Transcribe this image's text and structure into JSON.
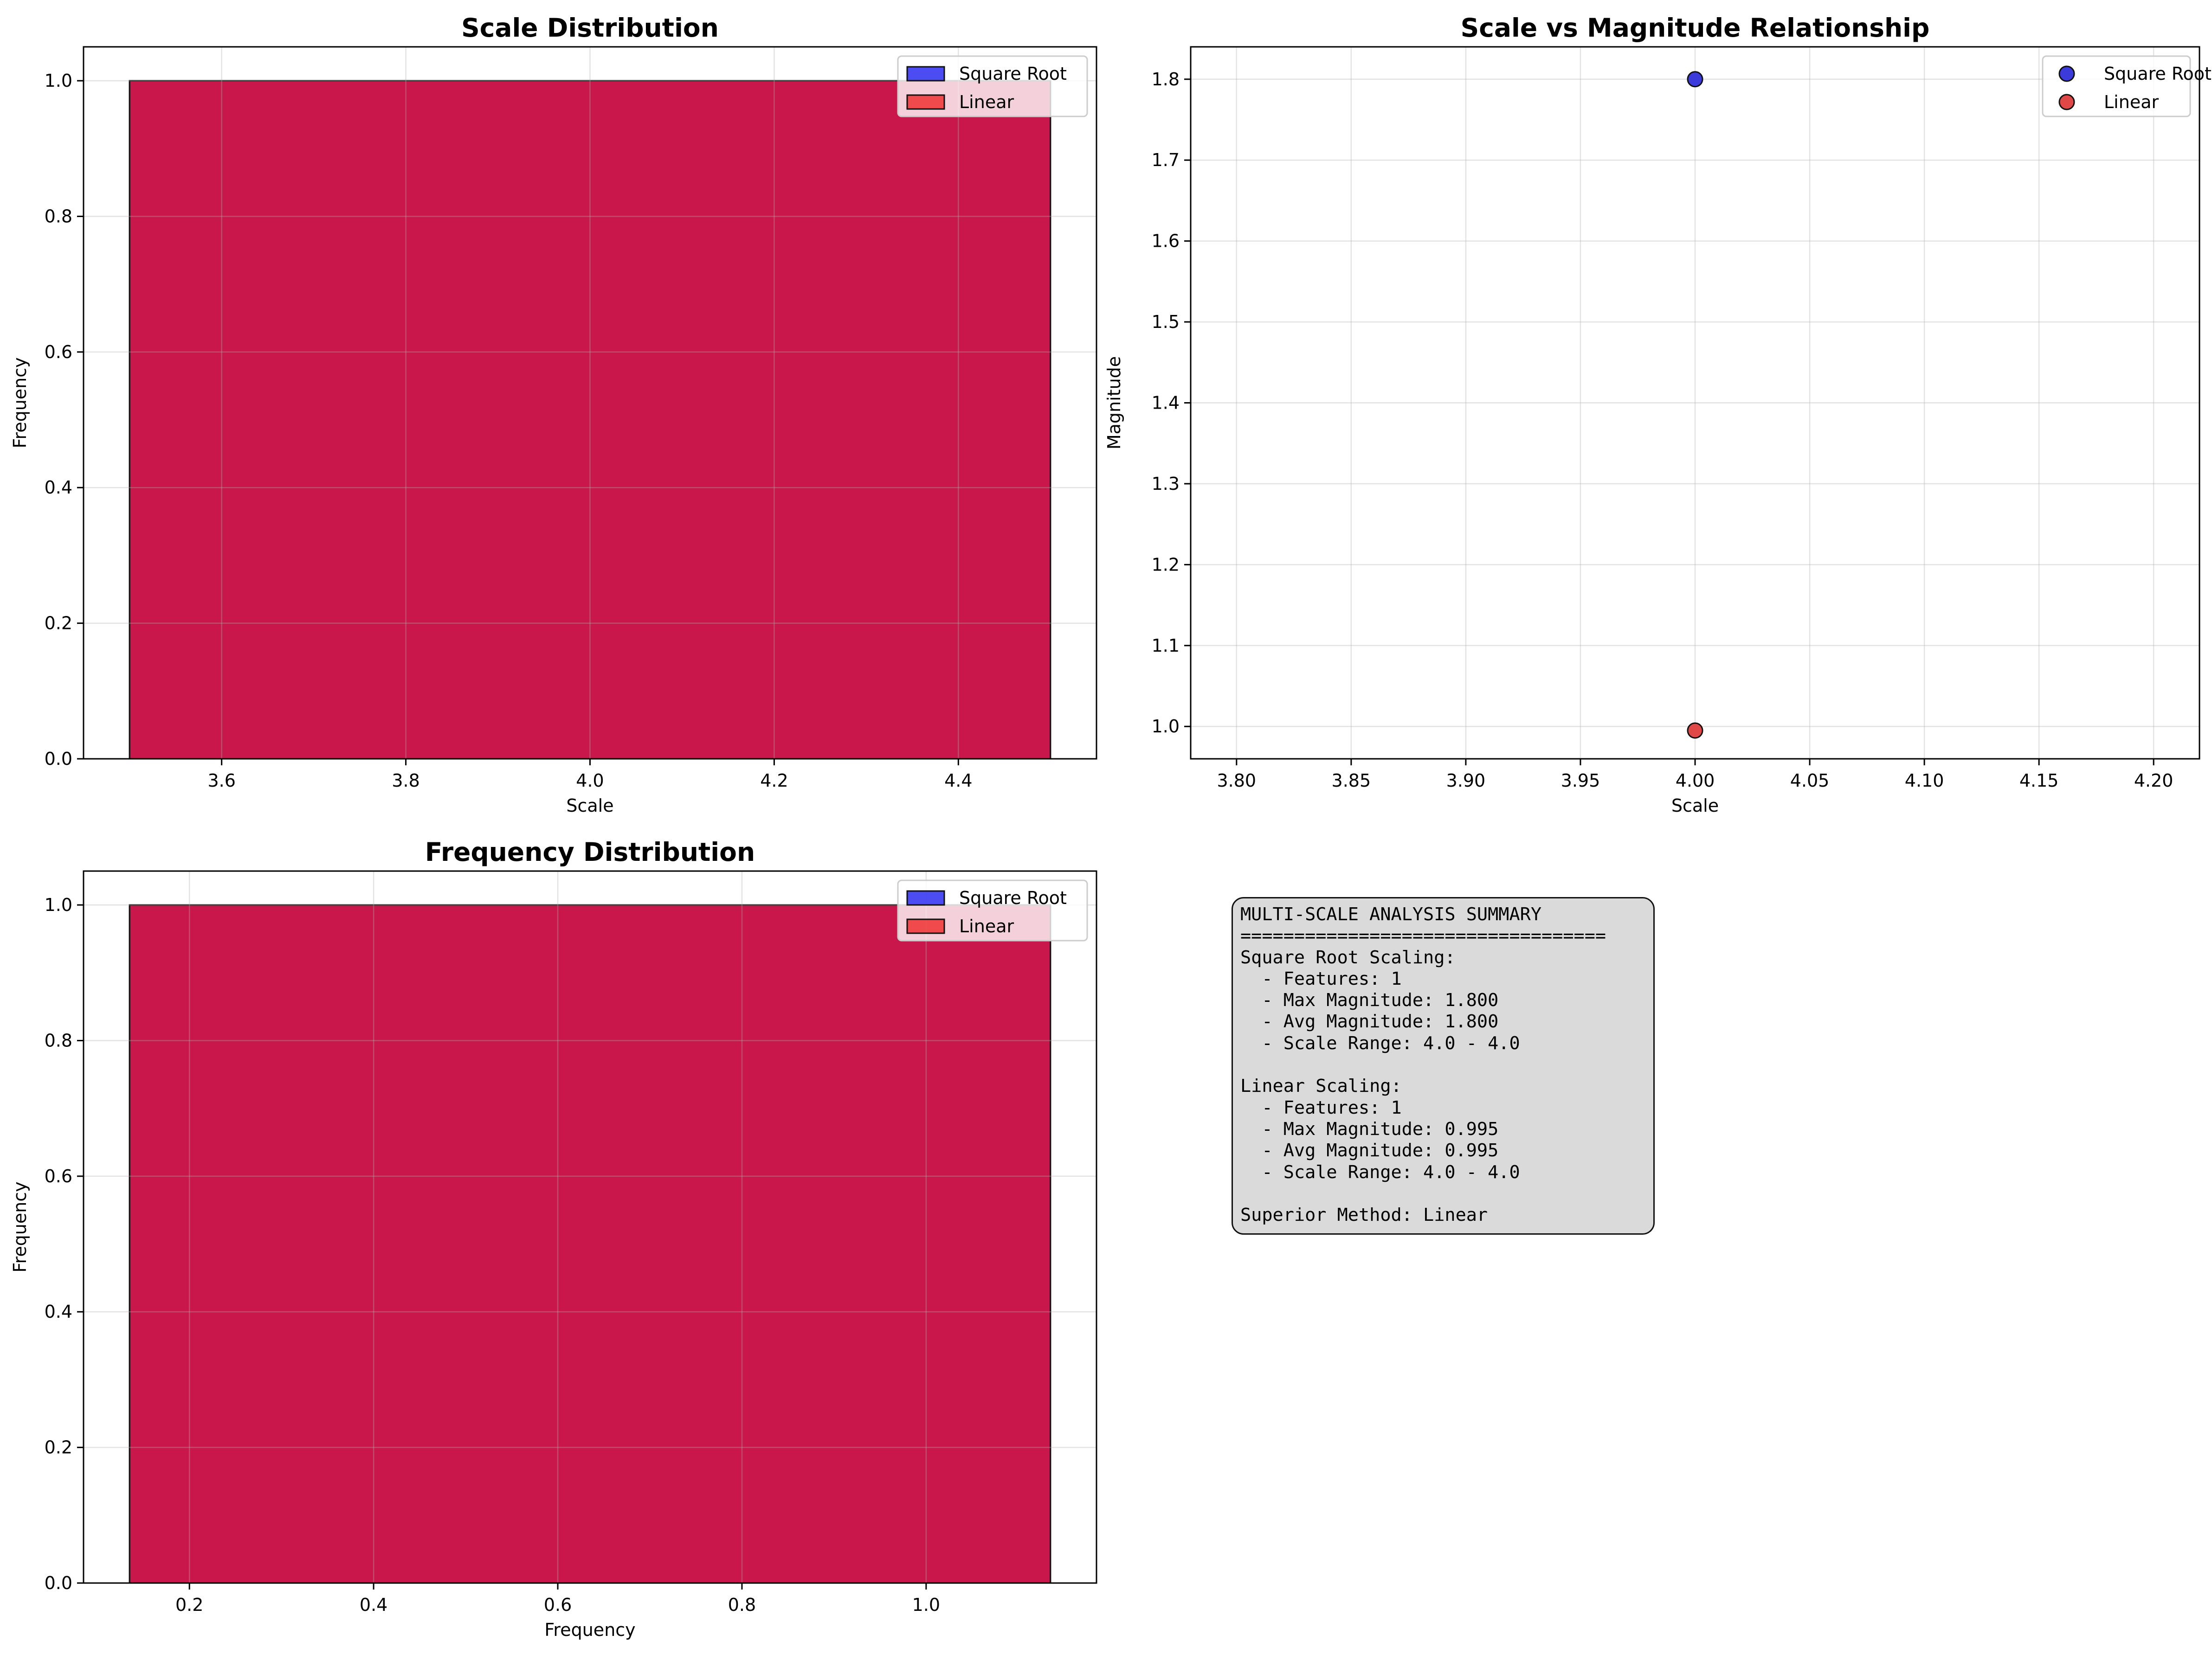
{
  "chart_data": [
    {
      "type": "bar",
      "title": "Scale Distribution",
      "xlabel": "Scale",
      "ylabel": "Frequency",
      "xlim": [
        3.45,
        4.55
      ],
      "ylim": [
        0,
        1.05
      ],
      "xticks": [
        "3.6",
        "3.8",
        "4.0",
        "4.2",
        "4.4"
      ],
      "yticks": [
        "0.0",
        "0.2",
        "0.4",
        "0.6",
        "0.8",
        "1.0"
      ],
      "grid": true,
      "legend_position": "top-right",
      "series": [
        {
          "name": "Square Root",
          "color": "#0000ee",
          "bins": [
            [
              3.5,
              4.5
            ]
          ],
          "values": [
            1
          ]
        },
        {
          "name": "Linear",
          "color": "#ee1111",
          "bins": [
            [
              3.5,
              4.5
            ]
          ],
          "values": [
            1
          ]
        }
      ],
      "overlap_color": "#c9174b"
    },
    {
      "type": "scatter",
      "title": "Scale vs Magnitude Relationship",
      "xlabel": "Scale",
      "ylabel": "Magnitude",
      "xlim": [
        3.78,
        4.22
      ],
      "ylim": [
        0.96,
        1.84
      ],
      "xticks": [
        "3.80",
        "3.85",
        "3.90",
        "3.95",
        "4.00",
        "4.05",
        "4.10",
        "4.15",
        "4.20"
      ],
      "yticks": [
        "1.0",
        "1.1",
        "1.2",
        "1.3",
        "1.4",
        "1.5",
        "1.6",
        "1.7",
        "1.8"
      ],
      "grid": true,
      "legend_position": "top-right",
      "series": [
        {
          "name": "Square Root",
          "color": "#3b3bdc",
          "points": [
            [
              4.0,
              1.8
            ]
          ]
        },
        {
          "name": "Linear",
          "color": "#e04848",
          "points": [
            [
              4.0,
              0.995
            ]
          ]
        }
      ]
    },
    {
      "type": "bar",
      "title": "Frequency Distribution",
      "xlabel": "Frequency",
      "ylabel": "Frequency",
      "xlim": [
        0.085,
        1.185
      ],
      "ylim": [
        0,
        1.05
      ],
      "xticks": [
        "0.2",
        "0.4",
        "0.6",
        "0.8",
        "1.0"
      ],
      "yticks": [
        "0.0",
        "0.2",
        "0.4",
        "0.6",
        "0.8",
        "1.0"
      ],
      "grid": true,
      "legend_position": "top-right",
      "series": [
        {
          "name": "Square Root",
          "color": "#0000ee",
          "bins": [
            [
              0.135,
              1.135
            ]
          ],
          "values": [
            1
          ]
        },
        {
          "name": "Linear",
          "color": "#ee1111",
          "bins": [
            [
              0.135,
              1.135
            ]
          ],
          "values": [
            1
          ]
        }
      ],
      "overlap_color": "#c9174b"
    }
  ],
  "summary": {
    "text": "MULTI-SCALE ANALYSIS SUMMARY\n==================================\nSquare Root Scaling:\n  - Features: 1\n  - Max Magnitude: 1.800\n  - Avg Magnitude: 1.800\n  - Scale Range: 4.0 - 4.0\n\nLinear Scaling:\n  - Features: 1\n  - Max Magnitude: 0.995\n  - Avg Magnitude: 0.995\n  - Scale Range: 4.0 - 4.0\n\nSuperior Method: Linear"
  }
}
